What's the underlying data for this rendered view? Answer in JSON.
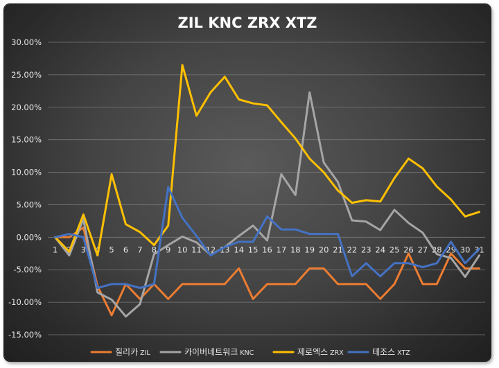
{
  "chart_data": {
    "type": "line",
    "title": "ZIL KNC ZRX XTZ",
    "x": [
      1,
      2,
      3,
      4,
      5,
      6,
      7,
      8,
      9,
      10,
      11,
      12,
      13,
      14,
      15,
      16,
      17,
      18,
      19,
      20,
      21,
      22,
      23,
      24,
      25,
      26,
      27,
      28,
      29,
      30,
      31
    ],
    "x_tick_labels": [
      "1",
      "2",
      "3",
      "4",
      "5",
      "6",
      "7",
      "8",
      "9",
      "10",
      "11",
      "12",
      "13",
      "14",
      "15",
      "16",
      "17",
      "18",
      "19",
      "20",
      "21",
      "22",
      "23",
      "24",
      "25",
      "26",
      "27",
      "28",
      "29",
      "30",
      "31"
    ],
    "ylim": [
      -15,
      30
    ],
    "y_tick_labels": [
      "30.00%",
      "25.00%",
      "20.00%",
      "15.00%",
      "10.00%",
      "5.00%",
      "0.00%",
      "-5.00%",
      "-10.00%",
      "-15.00%"
    ],
    "y_tick_values": [
      30,
      25,
      20,
      15,
      10,
      5,
      0,
      -5,
      -10,
      -15
    ],
    "y_unit": "%",
    "grid": true,
    "legend_position": "bottom",
    "series": [
      {
        "name": "질리카",
        "name_suffix": "ZIL",
        "color": "#ED7D31",
        "values": [
          0,
          0,
          1.5,
          -7.5,
          -12,
          -7.2,
          -9.5,
          -7.2,
          -9.5,
          -7.2,
          -7.2,
          -7.2,
          -7.2,
          -4.8,
          -9.5,
          -7.2,
          -7.2,
          -7.2,
          -4.8,
          -4.8,
          -7.2,
          -7.2,
          -7.2,
          -9.5,
          -7.2,
          -2.5,
          -7.2,
          -7.2,
          -2.5,
          -4.8,
          -4.8
        ]
      },
      {
        "name": "카이버네트워크",
        "name_suffix": "KNC",
        "color": "#A5A5A5",
        "values": [
          0,
          -2.8,
          2.8,
          -8.5,
          -9.6,
          -12.2,
          -10.3,
          -2.6,
          -1.2,
          0.1,
          -0.8,
          -2.7,
          -1.5,
          0.2,
          1.8,
          -0.5,
          9.7,
          6.5,
          22.3,
          11.5,
          8.5,
          2.6,
          2.4,
          1.1,
          4.2,
          2.2,
          0.7,
          -2.6,
          -3.2,
          -6.1,
          -2.8
        ]
      },
      {
        "name": "제로엑스",
        "name_suffix": "ZRX",
        "color": "#FFC000",
        "values": [
          0,
          -2.2,
          3.5,
          -2.8,
          9.7,
          2.0,
          0.8,
          -1.2,
          1.8,
          26.5,
          18.7,
          22.3,
          24.7,
          21.2,
          20.6,
          20.3,
          17.7,
          15.2,
          12.1,
          10.0,
          7.2,
          5.3,
          5.7,
          5.5,
          9.1,
          12.1,
          10.6,
          7.8,
          5.8,
          3.2,
          3.9
        ]
      },
      {
        "name": "테조스",
        "name_suffix": "XTZ",
        "color": "#4472C4",
        "values": [
          0,
          0.5,
          0,
          -7.8,
          -7.2,
          -7.2,
          -7.8,
          -7.2,
          7.7,
          3.0,
          0.2,
          -2.8,
          -1.5,
          -0.7,
          -0.7,
          3.2,
          1.2,
          1.2,
          0.5,
          0.5,
          0.5,
          -6.0,
          -4.0,
          -6.0,
          -4.0,
          -4.0,
          -4.6,
          -4.0,
          -0.7,
          -4.0,
          -1.8
        ]
      }
    ]
  }
}
